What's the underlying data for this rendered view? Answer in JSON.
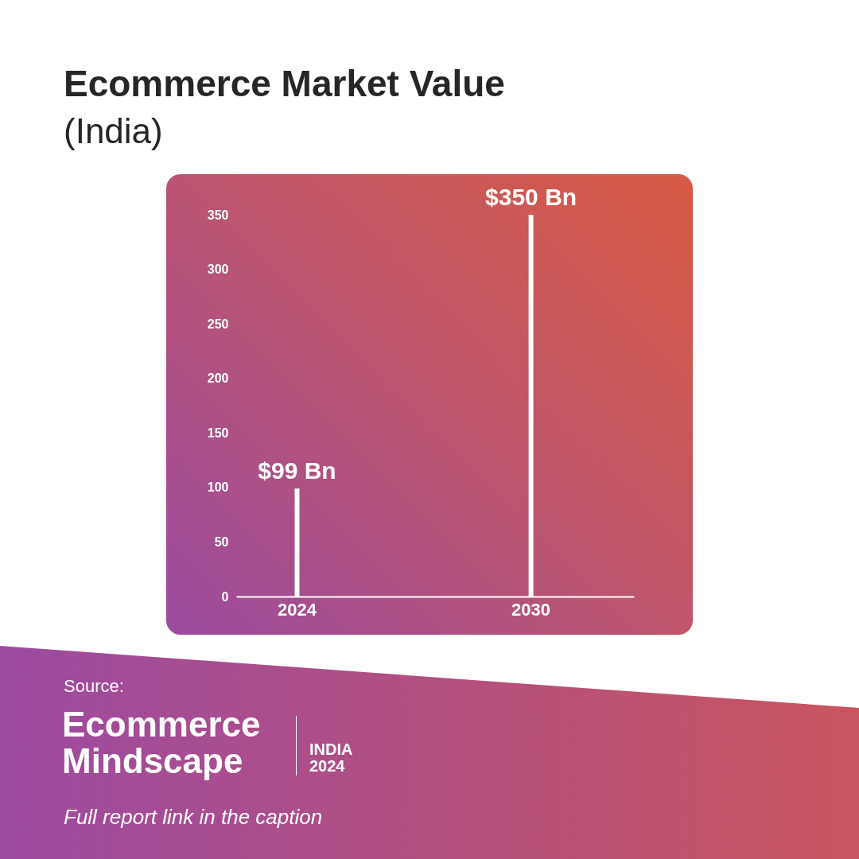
{
  "chart_data": {
    "type": "bar",
    "title": "Ecommerce Market Value",
    "subtitle": "(India)",
    "categories": [
      "2024",
      "2030"
    ],
    "values": [
      99,
      350
    ],
    "value_labels": [
      "$99 Bn",
      "$350 Bn"
    ],
    "color": "#ffffff",
    "ylim": [
      0,
      350
    ],
    "yticks": [
      0,
      50,
      100,
      150,
      200,
      250,
      300,
      350
    ],
    "grid": false,
    "annotations": [
      "Source:",
      "Ecommerce Mindscape",
      "INDIA 2024",
      "Full report link in the caption"
    ]
  }
}
